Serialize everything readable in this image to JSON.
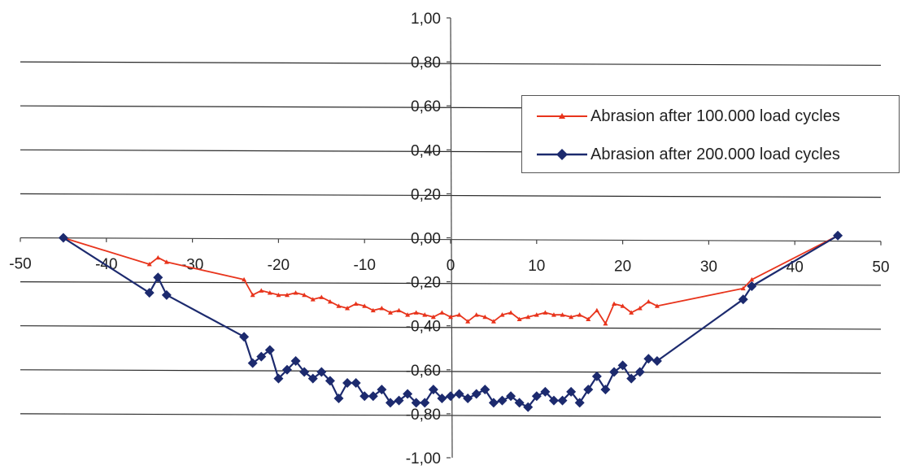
{
  "chart_data": {
    "type": "line",
    "title": "",
    "xlabel": "",
    "ylabel": "",
    "xlim": [
      -50,
      50
    ],
    "ylim": [
      -1.0,
      1.0
    ],
    "x_ticks": [
      "-50",
      "-40",
      "-30",
      "-20",
      "-10",
      "0",
      "10",
      "20",
      "30",
      "40",
      "50"
    ],
    "y_ticks": [
      "1,00",
      "0,80",
      "0,60",
      "0,40",
      "0,20",
      "0,00",
      "-0,20",
      "-0,40",
      "-0,60",
      "-0,80",
      "-1,00"
    ],
    "grid": "horizontal",
    "legend_position": "top-right",
    "series": [
      {
        "name": "Abrasion after 100.000 load cycles",
        "color": "#e8341c",
        "marker": "triangle",
        "points": [
          [
            -45,
            0.0
          ],
          [
            -35,
            -0.12
          ],
          [
            -34,
            -0.09
          ],
          [
            -33,
            -0.11
          ],
          [
            -24,
            -0.19
          ],
          [
            -23,
            -0.26
          ],
          [
            -22,
            -0.24
          ],
          [
            -21,
            -0.25
          ],
          [
            -20,
            -0.26
          ],
          [
            -19,
            -0.26
          ],
          [
            -18,
            -0.25
          ],
          [
            -17,
            -0.26
          ],
          [
            -16,
            -0.28
          ],
          [
            -15,
            -0.27
          ],
          [
            -14,
            -0.29
          ],
          [
            -13,
            -0.31
          ],
          [
            -12,
            -0.32
          ],
          [
            -11,
            -0.3
          ],
          [
            -10,
            -0.31
          ],
          [
            -9,
            -0.33
          ],
          [
            -8,
            -0.32
          ],
          [
            -7,
            -0.34
          ],
          [
            -6,
            -0.33
          ],
          [
            -5,
            -0.35
          ],
          [
            -4,
            -0.34
          ],
          [
            -3,
            -0.35
          ],
          [
            -2,
            -0.36
          ],
          [
            -1,
            -0.34
          ],
          [
            0,
            -0.36
          ],
          [
            1,
            -0.35
          ],
          [
            2,
            -0.38
          ],
          [
            3,
            -0.35
          ],
          [
            4,
            -0.36
          ],
          [
            5,
            -0.38
          ],
          [
            6,
            -0.35
          ],
          [
            7,
            -0.34
          ],
          [
            8,
            -0.37
          ],
          [
            9,
            -0.36
          ],
          [
            10,
            -0.35
          ],
          [
            11,
            -0.34
          ],
          [
            12,
            -0.35
          ],
          [
            13,
            -0.35
          ],
          [
            14,
            -0.36
          ],
          [
            15,
            -0.35
          ],
          [
            16,
            -0.37
          ],
          [
            17,
            -0.33
          ],
          [
            18,
            -0.39
          ],
          [
            19,
            -0.3
          ],
          [
            20,
            -0.31
          ],
          [
            21,
            -0.34
          ],
          [
            22,
            -0.32
          ],
          [
            23,
            -0.29
          ],
          [
            24,
            -0.31
          ],
          [
            34,
            -0.23
          ],
          [
            35,
            -0.19
          ],
          [
            45,
            0.01
          ]
        ]
      },
      {
        "name": "Abrasion after 200.000 load cycles",
        "color": "#1c2a6e",
        "marker": "diamond",
        "points": [
          [
            -45,
            0.0
          ],
          [
            -35,
            -0.25
          ],
          [
            -34,
            -0.18
          ],
          [
            -33,
            -0.26
          ],
          [
            -24,
            -0.45
          ],
          [
            -23,
            -0.57
          ],
          [
            -22,
            -0.54
          ],
          [
            -21,
            -0.51
          ],
          [
            -20,
            -0.64
          ],
          [
            -19,
            -0.6
          ],
          [
            -18,
            -0.56
          ],
          [
            -17,
            -0.61
          ],
          [
            -16,
            -0.64
          ],
          [
            -15,
            -0.61
          ],
          [
            -14,
            -0.65
          ],
          [
            -13,
            -0.73
          ],
          [
            -12,
            -0.66
          ],
          [
            -11,
            -0.66
          ],
          [
            -10,
            -0.72
          ],
          [
            -9,
            -0.72
          ],
          [
            -8,
            -0.69
          ],
          [
            -7,
            -0.75
          ],
          [
            -6,
            -0.74
          ],
          [
            -5,
            -0.71
          ],
          [
            -4,
            -0.75
          ],
          [
            -3,
            -0.75
          ],
          [
            -2,
            -0.69
          ],
          [
            -1,
            -0.73
          ],
          [
            0,
            -0.72
          ],
          [
            1,
            -0.71
          ],
          [
            2,
            -0.73
          ],
          [
            3,
            -0.71
          ],
          [
            4,
            -0.69
          ],
          [
            5,
            -0.75
          ],
          [
            6,
            -0.74
          ],
          [
            7,
            -0.72
          ],
          [
            8,
            -0.75
          ],
          [
            9,
            -0.77
          ],
          [
            10,
            -0.72
          ],
          [
            11,
            -0.7
          ],
          [
            12,
            -0.74
          ],
          [
            13,
            -0.74
          ],
          [
            14,
            -0.7
          ],
          [
            15,
            -0.75
          ],
          [
            16,
            -0.69
          ],
          [
            17,
            -0.63
          ],
          [
            18,
            -0.69
          ],
          [
            19,
            -0.61
          ],
          [
            20,
            -0.58
          ],
          [
            21,
            -0.64
          ],
          [
            22,
            -0.61
          ],
          [
            23,
            -0.55
          ],
          [
            24,
            -0.56
          ],
          [
            34,
            -0.28
          ],
          [
            35,
            -0.22
          ],
          [
            45,
            0.01
          ]
        ]
      }
    ]
  }
}
